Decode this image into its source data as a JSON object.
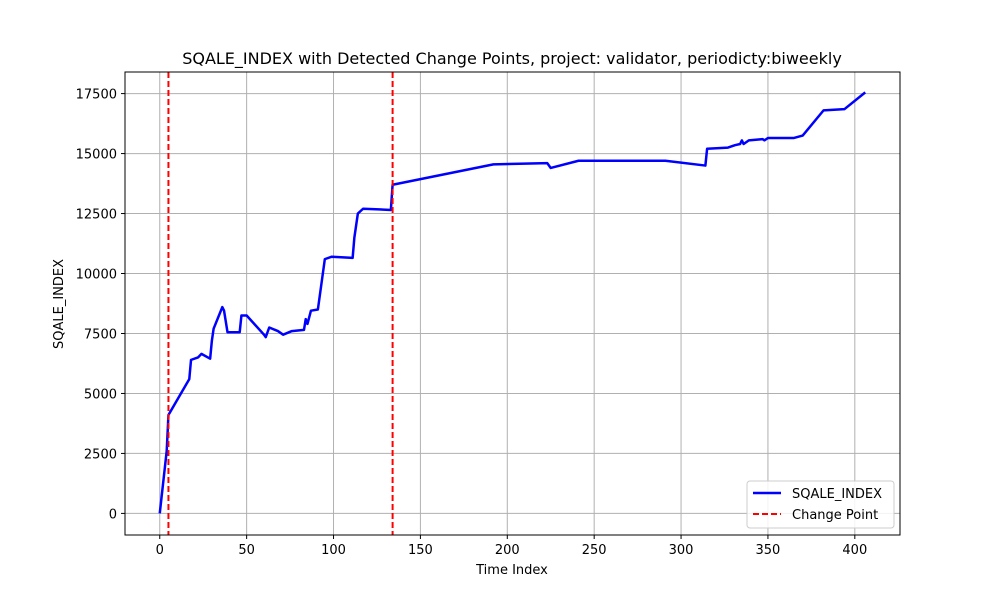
{
  "chart_data": {
    "type": "line",
    "title": "SQALE_INDEX with Detected Change Points, project: validator, periodicty:biweekly",
    "xlabel": "Time Index",
    "ylabel": "SQALE_INDEX",
    "xlim": [
      -20,
      426
    ],
    "ylim": [
      -900,
      18400
    ],
    "xticks": [
      0,
      50,
      100,
      150,
      200,
      250,
      300,
      350,
      400
    ],
    "yticks": [
      0,
      2500,
      5000,
      7500,
      10000,
      12500,
      15000,
      17500
    ],
    "grid": true,
    "legend_position": "lower right",
    "series": [
      {
        "name": "SQALE_INDEX",
        "color": "#0000ff",
        "style": "solid",
        "points": [
          [
            0,
            0
          ],
          [
            4,
            2600
          ],
          [
            5,
            4100
          ],
          [
            17,
            5600
          ],
          [
            18,
            6400
          ],
          [
            22,
            6500
          ],
          [
            24,
            6650
          ],
          [
            29,
            6450
          ],
          [
            30,
            7200
          ],
          [
            31,
            7700
          ],
          [
            36,
            8600
          ],
          [
            37,
            8450
          ],
          [
            39,
            7550
          ],
          [
            46,
            7550
          ],
          [
            47,
            8250
          ],
          [
            50,
            8250
          ],
          [
            60,
            7450
          ],
          [
            61,
            7350
          ],
          [
            63,
            7750
          ],
          [
            68,
            7600
          ],
          [
            71,
            7450
          ],
          [
            76,
            7600
          ],
          [
            83,
            7650
          ],
          [
            84,
            8100
          ],
          [
            85,
            7900
          ],
          [
            87,
            8450
          ],
          [
            91,
            8500
          ],
          [
            95,
            10600
          ],
          [
            99,
            10700
          ],
          [
            111,
            10650
          ],
          [
            112,
            11500
          ],
          [
            114,
            12500
          ],
          [
            117,
            12700
          ],
          [
            133,
            12650
          ],
          [
            134,
            13700
          ],
          [
            192,
            14550
          ],
          [
            223,
            14600
          ],
          [
            225,
            14400
          ],
          [
            241,
            14700
          ],
          [
            291,
            14700
          ],
          [
            314,
            14500
          ],
          [
            315,
            15200
          ],
          [
            327,
            15250
          ],
          [
            331,
            15350
          ],
          [
            334,
            15400
          ],
          [
            335,
            15550
          ],
          [
            336,
            15400
          ],
          [
            339,
            15550
          ],
          [
            347,
            15600
          ],
          [
            348,
            15550
          ],
          [
            350,
            15650
          ],
          [
            365,
            15650
          ],
          [
            370,
            15750
          ],
          [
            382,
            16800
          ],
          [
            394,
            16850
          ],
          [
            406,
            17550
          ]
        ]
      },
      {
        "name": "Change Point",
        "color": "#ff0000",
        "style": "dashed",
        "x_positions": [
          5,
          134
        ]
      }
    ]
  }
}
